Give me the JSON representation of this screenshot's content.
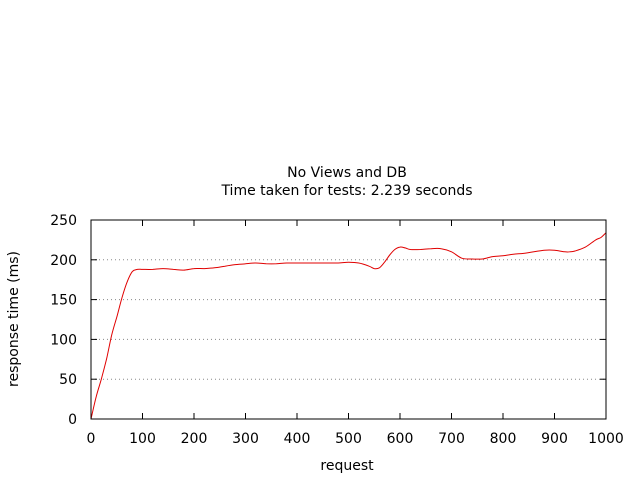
{
  "chart_data": {
    "type": "line",
    "title": "No Views and DB",
    "subtitle": "Time taken for tests: 2.239 seconds",
    "xlabel": "request",
    "ylabel": "response time (ms)",
    "xlim": [
      0,
      1000
    ],
    "ylim": [
      0,
      250
    ],
    "x_ticks": [
      0,
      100,
      200,
      300,
      400,
      500,
      600,
      700,
      800,
      900,
      1000
    ],
    "y_ticks": [
      0,
      50,
      100,
      150,
      200,
      250
    ],
    "grid": "horizontal dotted",
    "line_color": "#e00000",
    "series": [
      {
        "x": [
          0,
          10,
          20,
          30,
          40,
          50,
          60,
          70,
          80,
          90,
          100,
          120,
          140,
          160,
          180,
          200,
          220,
          240,
          260,
          280,
          300,
          320,
          340,
          360,
          380,
          400,
          420,
          440,
          460,
          480,
          500,
          520,
          540,
          550,
          560,
          570,
          580,
          590,
          600,
          610,
          620,
          640,
          660,
          680,
          700,
          720,
          740,
          760,
          780,
          800,
          820,
          840,
          860,
          880,
          900,
          920,
          930,
          940,
          960,
          980,
          990,
          1000
        ],
        "y": [
          0,
          28,
          50,
          75,
          105,
          128,
          152,
          172,
          185,
          188,
          188,
          188,
          189,
          188,
          187,
          189,
          189,
          190,
          192,
          194,
          195,
          196,
          195,
          195,
          196,
          196,
          196,
          196,
          196,
          196,
          197,
          196,
          192,
          189,
          190,
          197,
          206,
          213,
          216,
          215,
          213,
          213,
          214,
          214,
          210,
          202,
          201,
          201,
          204,
          205,
          207,
          208,
          210,
          212,
          212,
          210,
          210,
          211,
          216,
          225,
          228,
          234
        ]
      }
    ]
  }
}
